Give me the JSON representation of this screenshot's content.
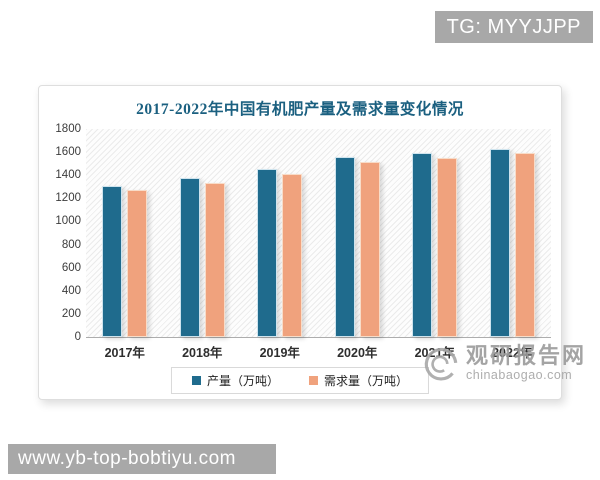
{
  "badge": {
    "text": "TG: MYYJJPP"
  },
  "url_bar": {
    "text": "www.yb-top-bobtiyu.com"
  },
  "watermark": {
    "name": "观研报告网",
    "domain": "chinabaogao.com"
  },
  "chart_data": {
    "type": "bar",
    "title": "2017-2022年中国有机肥产量及需求量变化情况",
    "categories": [
      "2017年",
      "2018年",
      "2019年",
      "2020年",
      "2021年",
      "2022年"
    ],
    "series": [
      {
        "name": "产量（万吨）",
        "color": "#1f6b8d",
        "edge_color": "#cfe4ee",
        "values": [
          1310,
          1375,
          1455,
          1560,
          1590,
          1630
        ]
      },
      {
        "name": "需求量（万吨）",
        "color": "#f0a27d",
        "edge_color": "#f8dcc8",
        "values": [
          1270,
          1335,
          1415,
          1515,
          1550,
          1590
        ]
      }
    ],
    "ylim": [
      0,
      1800
    ],
    "yticks": [
      0,
      200,
      400,
      600,
      800,
      1000,
      1200,
      1400,
      1600,
      1800
    ],
    "xlabel": "",
    "ylabel": "",
    "grid": false,
    "legend_position": "bottom"
  }
}
